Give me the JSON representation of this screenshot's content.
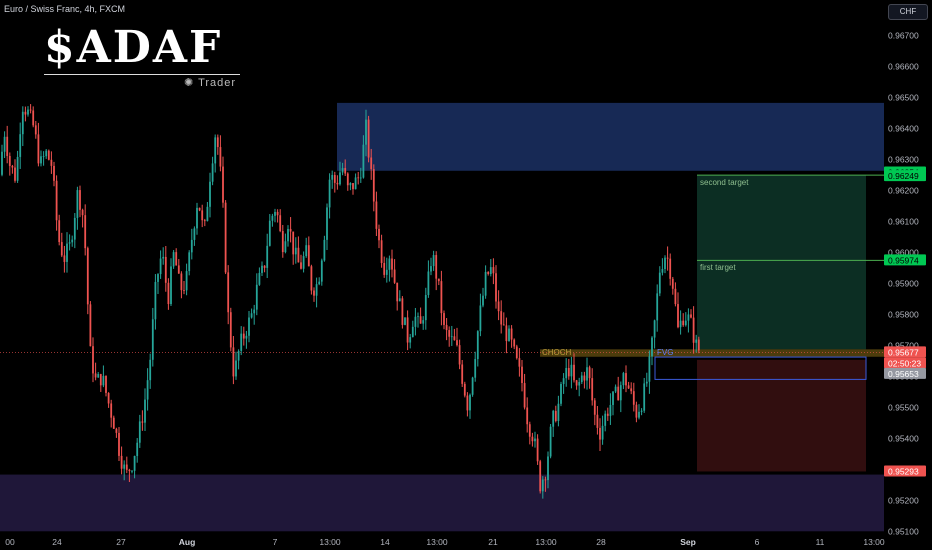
{
  "symbol_title": "Euro / Swiss Franc, 4h, FXCM",
  "currency_button": "CHF",
  "logo": {
    "main": "$ADAF",
    "sub": "Trader"
  },
  "colors": {
    "bull": "#26a69a",
    "bear": "#ef5350",
    "supply_zone": "#1a2d5e",
    "demand_zone": "#221a3f",
    "tp_zone": "#0f3a2c",
    "sl_zone": "#3d1113",
    "choch_zone": "#8a6d16"
  },
  "chart_data": {
    "type": "candlestick",
    "symbol": "Euro / Swiss Franc",
    "timeframe": "4h",
    "exchange": "FXCM",
    "ylim": [
      0.951,
      0.9676
    ],
    "y_ticks": [
      "0.96700",
      "0.96600",
      "0.96500",
      "0.96400",
      "0.96300",
      "0.96200",
      "0.96100",
      "0.96000",
      "0.95900",
      "0.95800",
      "0.95700",
      "0.95600",
      "0.95500",
      "0.95400",
      "0.95300",
      "0.95200",
      "0.95100"
    ],
    "x_ticks": [
      "00",
      "24",
      "27",
      "Aug",
      "7",
      "13:00",
      "14",
      "13:00",
      "21",
      "13:00",
      "28",
      "Sep",
      "6",
      "11",
      "13:00"
    ],
    "zones": [
      {
        "name": "supply",
        "top": 0.96482,
        "bottom": 0.96263
      },
      {
        "name": "demand",
        "top": 0.95283,
        "bottom": 0.951
      },
      {
        "name": "target_profit",
        "top": 0.96249,
        "bottom": 0.95687
      },
      {
        "name": "stop_loss",
        "top": 0.95653,
        "bottom": 0.95293
      },
      {
        "name": "CHOCH",
        "top": 0.95687,
        "bottom": 0.95663
      },
      {
        "name": "FVG",
        "top": 0.95662,
        "bottom": 0.9559
      }
    ],
    "annotations": [
      "CHOCH",
      "FVG",
      "second target",
      "first target"
    ],
    "price_labels": [
      {
        "value": "0.96254"
      },
      {
        "value": "0.96249"
      },
      {
        "value": "0.95974"
      },
      {
        "value": "0.95677"
      },
      {
        "value": "02:50:23"
      },
      {
        "value": "0.95653"
      },
      {
        "value": "0.95293"
      }
    ],
    "current_price": 0.95677
  }
}
